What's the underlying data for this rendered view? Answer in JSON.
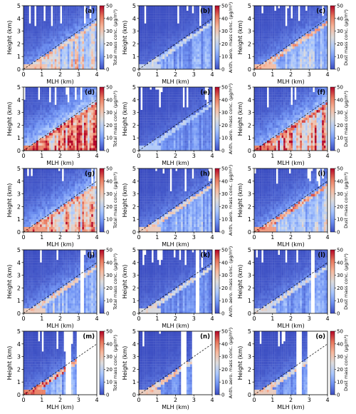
{
  "figure": {
    "xlabel": "MLH (km)",
    "ylabel": "Height (km)",
    "x_ticks": [
      "0",
      "1",
      "2",
      "3",
      "4"
    ],
    "y_ticks": [
      "0",
      "1",
      "2",
      "3",
      "4",
      "5"
    ],
    "cbar_ticks": [
      "0",
      "10",
      "20",
      "30",
      "40",
      "50"
    ],
    "cbar_labels": [
      "Total mass conc. (μg/m³)",
      "Anth. aero. mass conc. (μg/m³)",
      "Dust mass conc. (μg/m³)"
    ],
    "colormap": [
      "#3b4cc0",
      "#6f92f3",
      "#aac7fd",
      "#dddcdc",
      "#f7b89c",
      "#e7745b",
      "#b40426"
    ]
  },
  "chart_data": {
    "type": "heatmap",
    "grid": "5 rows × 3 columns of panels",
    "x_range": [
      0,
      4
    ],
    "y_range": [
      0,
      5
    ],
    "color_range": [
      0,
      50
    ],
    "reference_line": "dashed 1:1 line (height = MLH)",
    "panels": [
      {
        "label": "(a)",
        "variable": "Total mass conc.",
        "peak": 38,
        "bulk": 24,
        "aloft": 9,
        "gaps": []
      },
      {
        "label": "(b)",
        "variable": "Anth. aero. mass conc.",
        "peak": 26,
        "bulk": 11,
        "aloft": 4,
        "gaps": []
      },
      {
        "label": "(c)",
        "variable": "Dust mass conc.",
        "peak": 40,
        "bulk": 17,
        "aloft": 7,
        "gaps": []
      },
      {
        "label": "(d)",
        "variable": "Total mass conc.",
        "peak": 50,
        "bulk": 44,
        "aloft": 18,
        "gaps": []
      },
      {
        "label": "(e)",
        "variable": "Anth. aero. mass conc.",
        "peak": 22,
        "bulk": 9,
        "aloft": 4,
        "gaps": []
      },
      {
        "label": "(f)",
        "variable": "Dust mass conc.",
        "peak": 50,
        "bulk": 38,
        "aloft": 14,
        "gaps": []
      },
      {
        "label": "(g)",
        "variable": "Total mass conc.",
        "peak": 46,
        "bulk": 33,
        "aloft": 13,
        "gaps": []
      },
      {
        "label": "(h)",
        "variable": "Anth. aero. mass conc.",
        "peak": 36,
        "bulk": 14,
        "aloft": 6,
        "gaps": []
      },
      {
        "label": "(i)",
        "variable": "Dust mass conc.",
        "peak": 46,
        "bulk": 20,
        "aloft": 9,
        "gaps": []
      },
      {
        "label": "(j)",
        "variable": "Total mass conc.",
        "peak": 36,
        "bulk": 16,
        "aloft": 8,
        "gaps": [
          [
            3.1,
            3.35
          ]
        ]
      },
      {
        "label": "(k)",
        "variable": "Anth. aero. mass conc.",
        "peak": 30,
        "bulk": 9,
        "aloft": 5,
        "gaps": [
          [
            3.1,
            3.35
          ]
        ]
      },
      {
        "label": "(l)",
        "variable": "Dust mass conc.",
        "peak": 30,
        "bulk": 11,
        "aloft": 6,
        "gaps": [
          [
            3.1,
            3.35
          ]
        ]
      },
      {
        "label": "(m)",
        "variable": "Total mass conc.",
        "peak": 50,
        "bulk": 13,
        "aloft": 6,
        "gaps": [
          [
            2.35,
            2.6
          ],
          [
            2.9,
            4.0
          ]
        ]
      },
      {
        "label": "(n)",
        "variable": "Anth. aero. mass conc.",
        "peak": 36,
        "bulk": 8,
        "aloft": 4,
        "gaps": [
          [
            2.35,
            2.6
          ],
          [
            2.9,
            4.0
          ]
        ]
      },
      {
        "label": "(o)",
        "variable": "Dust mass conc.",
        "peak": 36,
        "bulk": 10,
        "aloft": 5,
        "gaps": [
          [
            2.35,
            2.6
          ],
          [
            2.9,
            4.0
          ]
        ]
      }
    ]
  }
}
